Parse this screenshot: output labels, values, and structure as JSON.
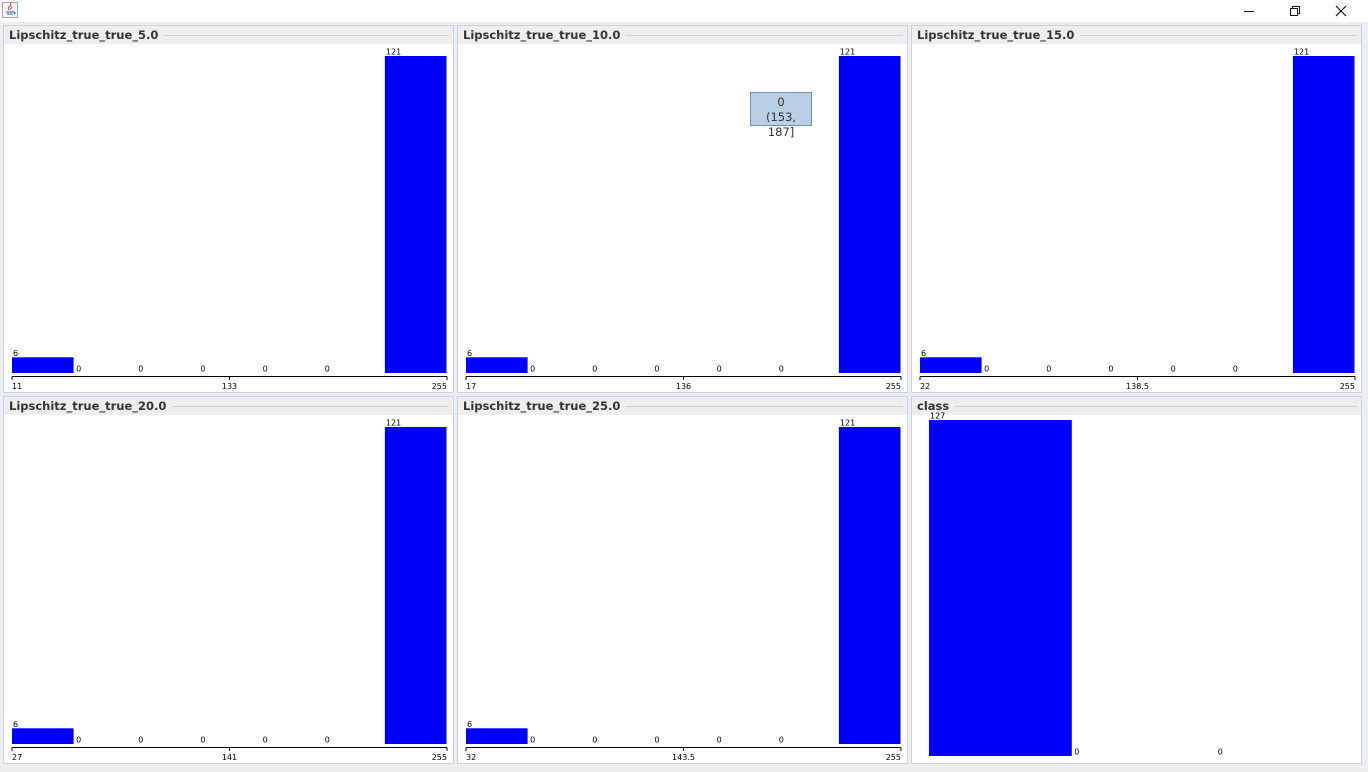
{
  "window": {
    "minimize_label": "",
    "restore_label": "",
    "close_label": ""
  },
  "tooltip": {
    "value": "0",
    "range": "(153, 187]"
  },
  "colors": {
    "bar": "#0000ff",
    "panel_border": "#c9d3de",
    "background": "#eeeeee",
    "tooltip_bg": "#b8cfe5"
  },
  "chart_data": [
    {
      "type": "bar",
      "title": "Lipschitz_true_true_5.0",
      "values": [
        6,
        0,
        0,
        0,
        0,
        0,
        121
      ],
      "value_labels": [
        "6",
        "0",
        "0",
        "0",
        "0",
        "0",
        "121"
      ],
      "tick_labels": [
        "11",
        "133",
        "255"
      ],
      "ylim": [
        0,
        121
      ]
    },
    {
      "type": "bar",
      "title": "Lipschitz_true_true_10.0",
      "values": [
        6,
        0,
        0,
        0,
        0,
        0,
        121
      ],
      "value_labels": [
        "6",
        "0",
        "0",
        "0",
        "0",
        "0",
        "121"
      ],
      "tick_labels": [
        "17",
        "136",
        "255"
      ],
      "ylim": [
        0,
        121
      ]
    },
    {
      "type": "bar",
      "title": "Lipschitz_true_true_15.0",
      "values": [
        6,
        0,
        0,
        0,
        0,
        0,
        121
      ],
      "value_labels": [
        "6",
        "0",
        "0",
        "0",
        "0",
        "0",
        "121"
      ],
      "tick_labels": [
        "22",
        "138.5",
        "255"
      ],
      "ylim": [
        0,
        121
      ]
    },
    {
      "type": "bar",
      "title": "Lipschitz_true_true_20.0",
      "values": [
        6,
        0,
        0,
        0,
        0,
        0,
        121
      ],
      "value_labels": [
        "6",
        "0",
        "0",
        "0",
        "0",
        "0",
        "121"
      ],
      "tick_labels": [
        "27",
        "141",
        "255"
      ],
      "ylim": [
        0,
        121
      ]
    },
    {
      "type": "bar",
      "title": "Lipschitz_true_true_25.0",
      "values": [
        6,
        0,
        0,
        0,
        0,
        0,
        121
      ],
      "value_labels": [
        "6",
        "0",
        "0",
        "0",
        "0",
        "0",
        "121"
      ],
      "tick_labels": [
        "32",
        "143.5",
        "255"
      ],
      "ylim": [
        0,
        121
      ]
    },
    {
      "type": "bar",
      "title": "class",
      "values": [
        127,
        0,
        0
      ],
      "value_labels": [
        "127",
        "0",
        "0"
      ],
      "tick_labels": [],
      "ylim": [
        0,
        127
      ]
    }
  ]
}
